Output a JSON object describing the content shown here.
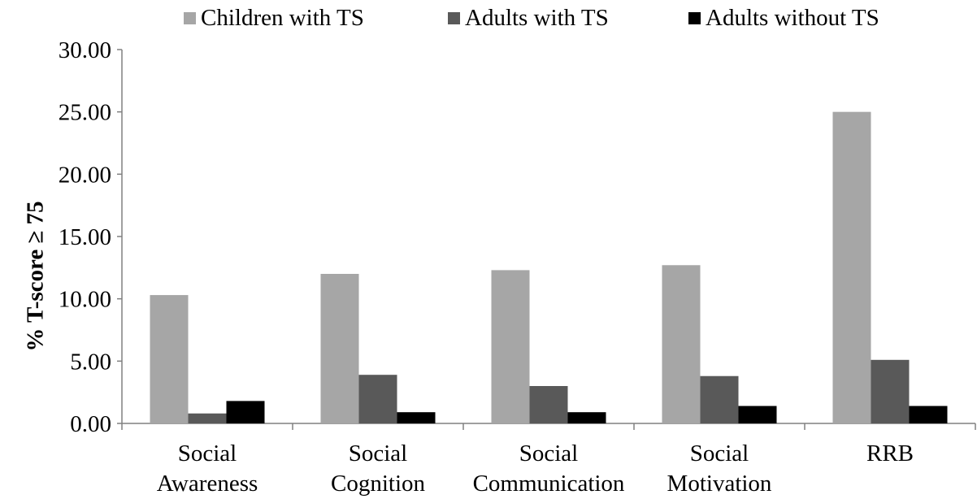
{
  "chart_data": {
    "type": "bar",
    "categories": [
      [
        "Social",
        "Awareness"
      ],
      [
        "Social",
        "Cognition"
      ],
      [
        "Social",
        "Communication"
      ],
      [
        "Social",
        "Motivation"
      ],
      [
        "RRB"
      ]
    ],
    "series": [
      {
        "name": "Children with TS",
        "values": [
          10.3,
          12.0,
          12.3,
          12.7,
          25.0
        ],
        "color": "#a6a6a6"
      },
      {
        "name": "Adults with TS",
        "values": [
          0.8,
          3.9,
          3.0,
          3.8,
          5.1
        ],
        "color": "#595959"
      },
      {
        "name": "Adults without TS",
        "values": [
          1.8,
          0.9,
          0.9,
          1.4,
          1.4
        ],
        "color": "#000000"
      }
    ],
    "ylabel": "% T-score ≥ 75",
    "xlabel": "",
    "ylim": [
      0,
      30
    ],
    "yticks": [
      "0.00",
      "5.00",
      "10.00",
      "15.00",
      "20.00",
      "25.00",
      "30.00"
    ],
    "grid": false,
    "legend": "top"
  }
}
